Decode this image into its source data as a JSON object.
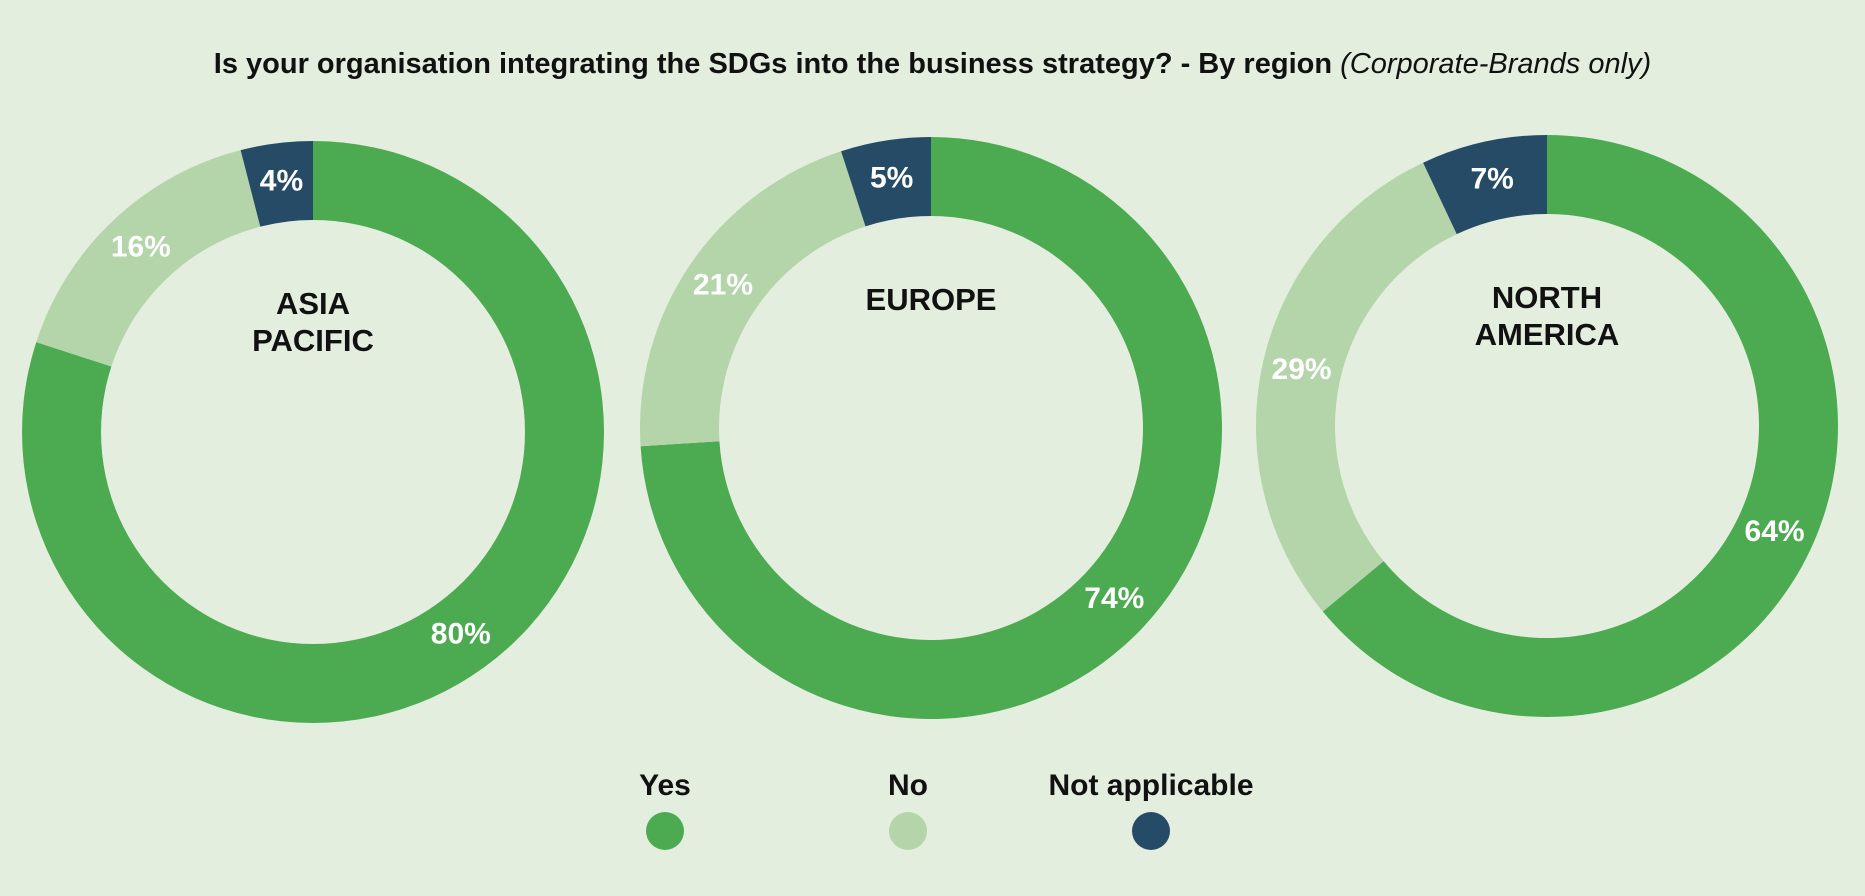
{
  "title": "Is your organisation integrating the SDGs into the business strategy? - By region",
  "subtitle": "(Corporate-Brands only)",
  "chart_data": [
    {
      "type": "donut",
      "title": "ASIA PACIFIC",
      "categories": [
        "Yes",
        "No",
        "Not applicable"
      ],
      "values": [
        80,
        16,
        4
      ],
      "value_labels": [
        "80%",
        "16%",
        "4%"
      ],
      "colors": [
        "#4caa50",
        "#b3d5a9",
        "#264b66"
      ]
    },
    {
      "type": "donut",
      "title": "EUROPE",
      "categories": [
        "Yes",
        "No",
        "Not applicable"
      ],
      "values": [
        74,
        21,
        5
      ],
      "value_labels": [
        "74%",
        "21%",
        "5%"
      ],
      "colors": [
        "#4caa50",
        "#b3d5a9",
        "#264b66"
      ]
    },
    {
      "type": "donut",
      "title": "NORTH AMERICA",
      "categories": [
        "Yes",
        "No",
        "Not applicable"
      ],
      "values": [
        64,
        29,
        7
      ],
      "value_labels": [
        "64%",
        "29%",
        "7%"
      ],
      "colors": [
        "#4caa50",
        "#b3d5a9",
        "#264b66"
      ]
    }
  ]
}
